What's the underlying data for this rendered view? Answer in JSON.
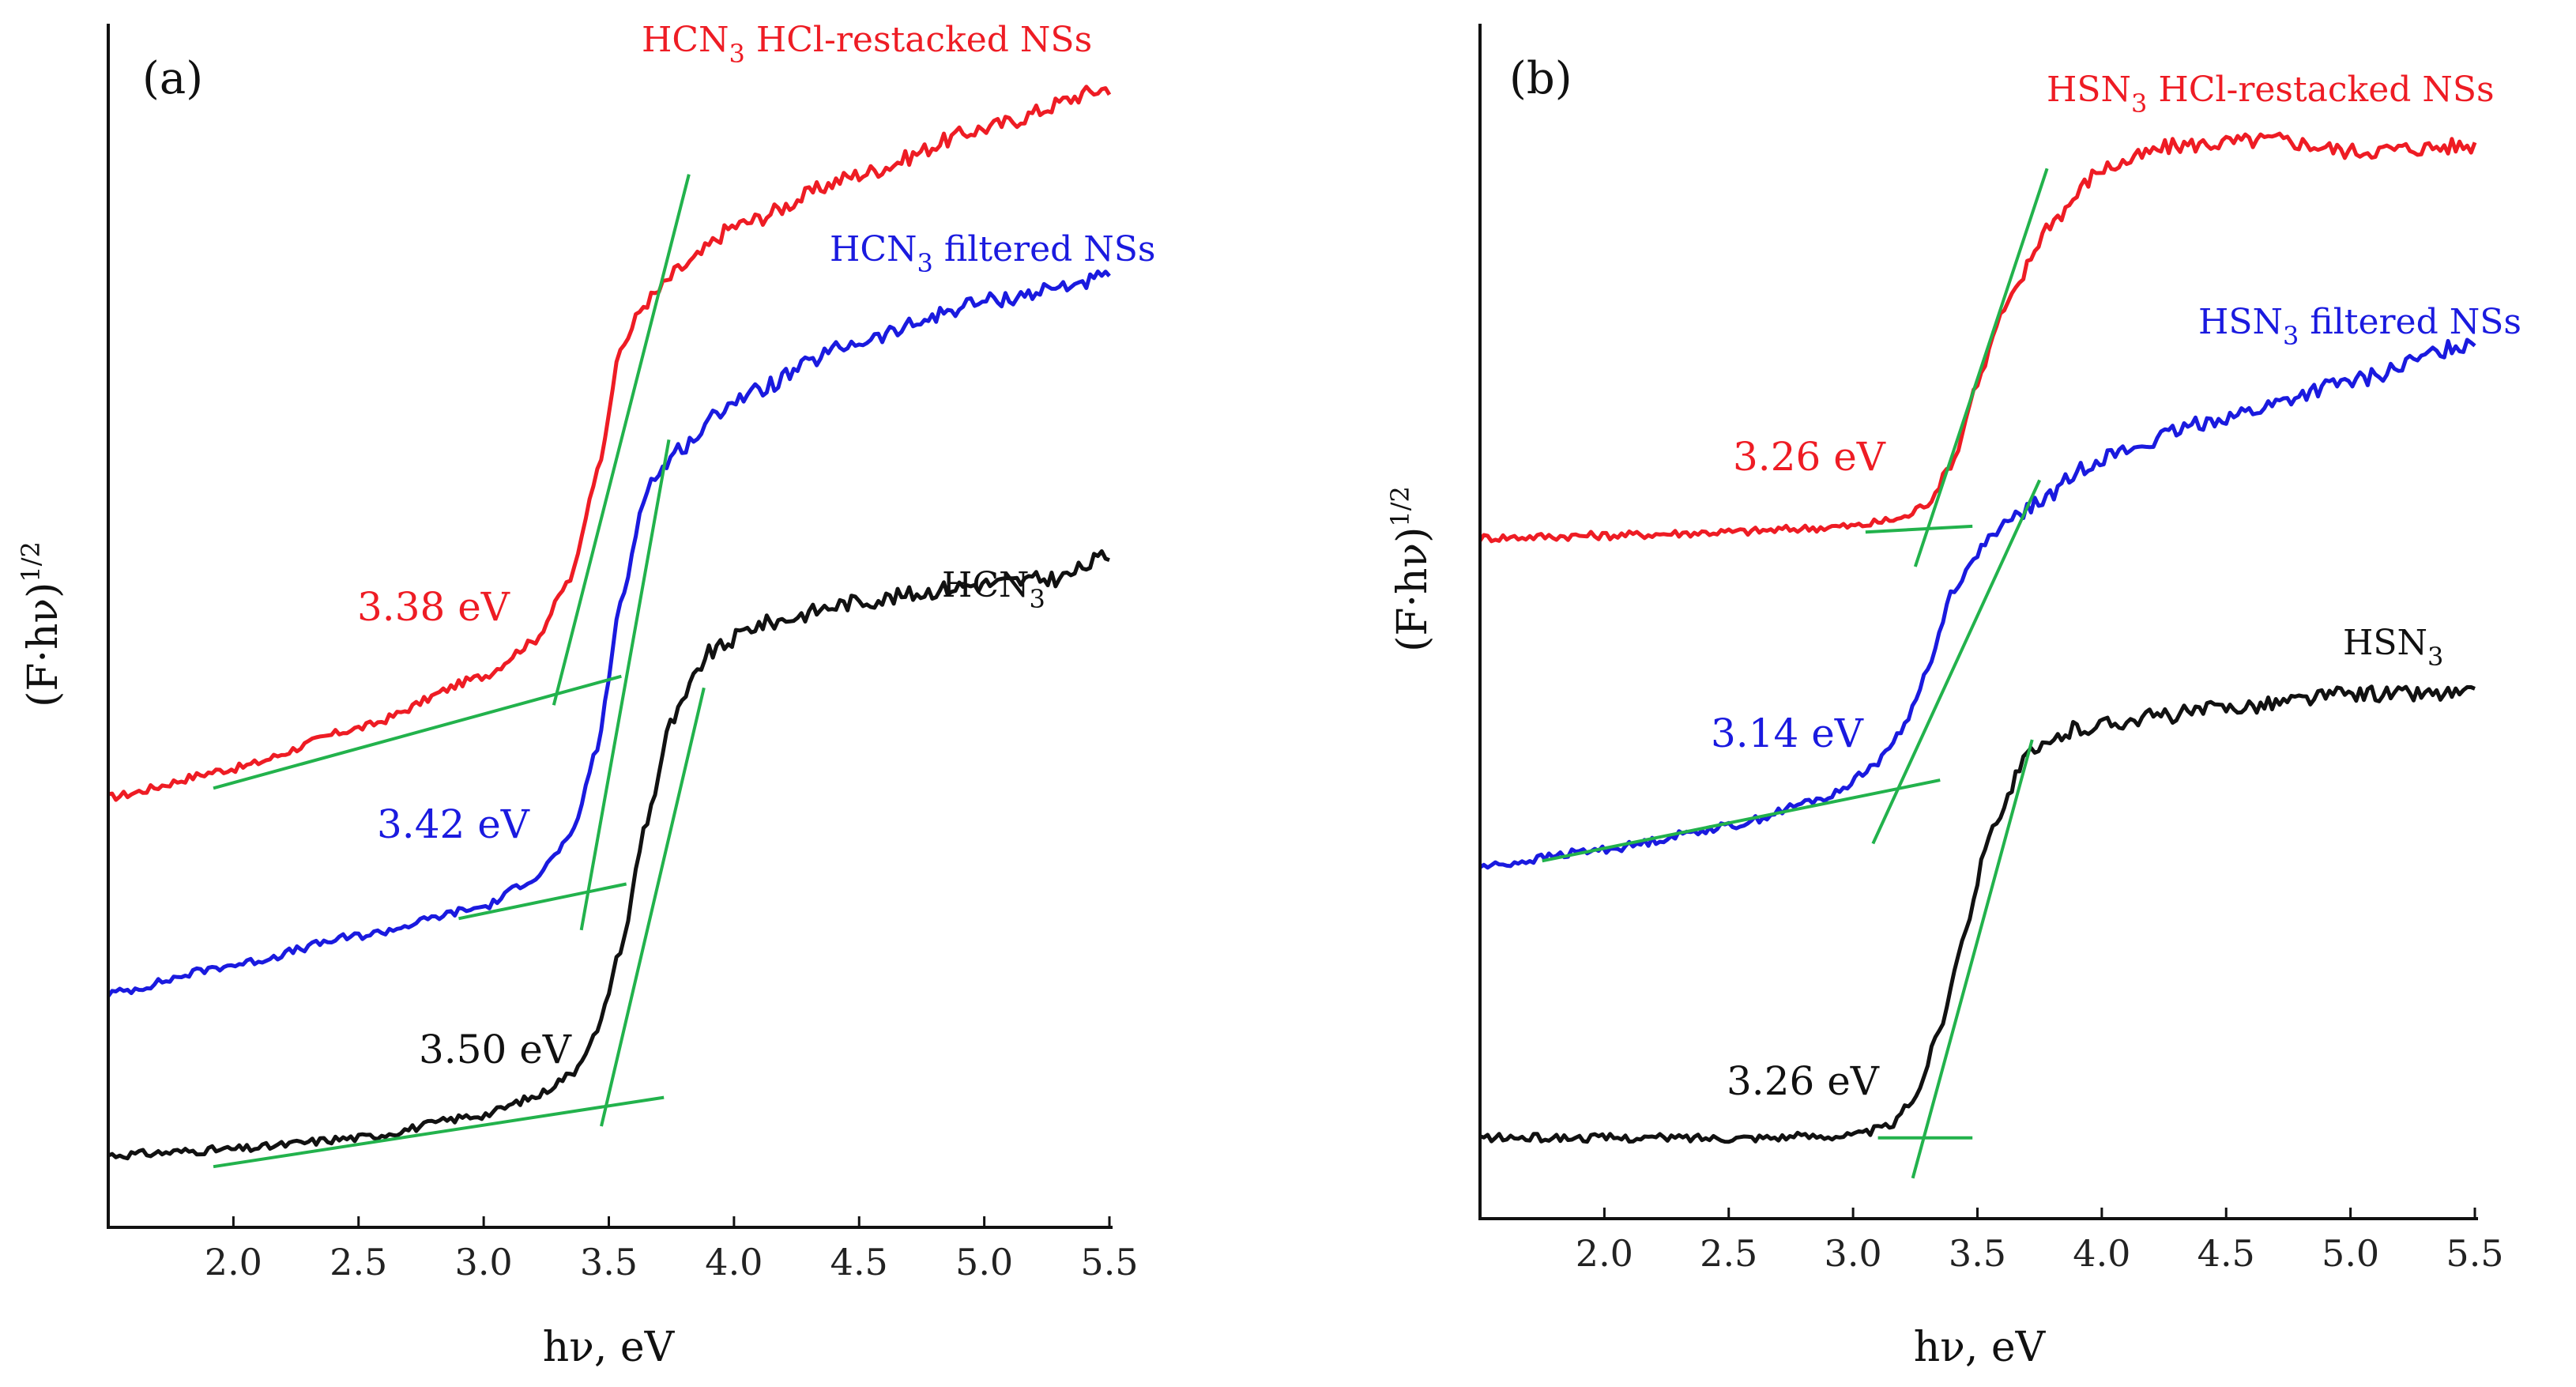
{
  "colors": {
    "red": "#ee1c24",
    "blue": "#1a1adf",
    "black": "#111111",
    "green": "#22b24c"
  },
  "chart_data": [
    {
      "type": "line",
      "panel_label": "(a)",
      "xlabel": "hν, eV",
      "ylabel_main": "(F·hν)",
      "ylabel_exp": "1/2",
      "xlim": [
        1.5,
        5.5
      ],
      "ylim": [
        0,
        10
      ],
      "xticks": [
        "2.0",
        "2.5",
        "3.0",
        "3.5",
        "4.0",
        "4.5",
        "5.0",
        "5.5"
      ],
      "series": [
        {
          "name": "HCN3 HCl-restacked NSs",
          "label_main": "HCN",
          "label_sub": "3",
          "label_rest": " HCl-restacked NSs",
          "color": "red",
          "bandgap": "3.38 eV",
          "x": [
            1.5,
            2.0,
            2.5,
            3.0,
            3.2,
            3.35,
            3.45,
            3.55,
            3.65,
            3.8,
            4.0,
            4.5,
            5.0,
            5.5
          ],
          "y": [
            3.5,
            3.75,
            4.1,
            4.55,
            4.85,
            5.4,
            6.3,
            7.4,
            7.8,
            8.1,
            8.45,
            8.9,
            9.3,
            9.65
          ]
        },
        {
          "name": "HCN3 filtered NSs",
          "label_main": "HCN",
          "label_sub": "3",
          "label_rest": " filtered NSs",
          "color": "blue",
          "bandgap": "3.42 eV",
          "x": [
            1.5,
            2.0,
            2.5,
            3.0,
            3.2,
            3.35,
            3.45,
            3.55,
            3.65,
            3.8,
            4.0,
            4.5,
            5.0,
            5.5
          ],
          "y": [
            1.8,
            2.05,
            2.3,
            2.55,
            2.8,
            3.15,
            3.9,
            5.2,
            6.2,
            6.55,
            6.95,
            7.45,
            7.8,
            8.0
          ]
        },
        {
          "name": "HCN3",
          "label_main": "HCN",
          "label_sub": "3",
          "label_rest": "",
          "color": "black",
          "bandgap": "3.50 eV",
          "x": [
            1.5,
            2.0,
            2.5,
            3.0,
            3.2,
            3.35,
            3.45,
            3.55,
            3.65,
            3.75,
            3.9,
            4.1,
            4.5,
            5.0,
            5.3,
            5.5
          ],
          "y": [
            0.4,
            0.45,
            0.55,
            0.75,
            0.9,
            1.1,
            1.45,
            2.2,
            3.3,
            4.15,
            4.75,
            5.0,
            5.2,
            5.35,
            5.4,
            5.6
          ]
        }
      ],
      "tangents": [
        {
          "color": "green",
          "x": [
            1.92,
            3.55
          ],
          "y": [
            3.58,
            4.55
          ]
        },
        {
          "color": "green",
          "x": [
            3.28,
            3.82
          ],
          "y": [
            4.3,
            8.9
          ]
        },
        {
          "color": "green",
          "x": [
            2.9,
            3.57
          ],
          "y": [
            2.45,
            2.75
          ]
        },
        {
          "color": "green",
          "x": [
            3.39,
            3.74
          ],
          "y": [
            2.35,
            6.6
          ]
        },
        {
          "color": "green",
          "x": [
            1.92,
            3.72
          ],
          "y": [
            0.3,
            0.9
          ]
        },
        {
          "color": "green",
          "x": [
            3.47,
            3.88
          ],
          "y": [
            0.65,
            4.45
          ]
        }
      ]
    },
    {
      "type": "line",
      "panel_label": "(b)",
      "xlabel": "hν, eV",
      "ylabel_main": "(F·hν)",
      "ylabel_exp": "1/2",
      "xlim": [
        1.5,
        5.5
      ],
      "ylim": [
        0,
        10
      ],
      "xticks": [
        "2.0",
        "2.5",
        "3.0",
        "3.5",
        "4.0",
        "4.5",
        "5.0",
        "5.5"
      ],
      "series": [
        {
          "name": "HSN3 HCl-restacked NSs",
          "label_main": "HSN",
          "label_sub": "3",
          "label_rest": " HCl-restacked NSs",
          "color": "red",
          "bandgap": "3.26 eV",
          "x": [
            1.5,
            2.0,
            2.5,
            3.0,
            3.2,
            3.3,
            3.4,
            3.5,
            3.6,
            3.8,
            4.0,
            4.3,
            4.7,
            5.0,
            5.5
          ],
          "y": [
            5.75,
            5.77,
            5.8,
            5.85,
            5.92,
            6.05,
            6.4,
            7.1,
            7.7,
            8.5,
            8.95,
            9.15,
            9.2,
            9.1,
            9.15
          ]
        },
        {
          "name": "HSN3 filtered NSs",
          "label_main": "HSN",
          "label_sub": "3",
          "label_rest": " filtered NSs",
          "color": "blue",
          "bandgap": "3.14 eV",
          "x": [
            1.5,
            2.0,
            2.5,
            2.9,
            3.1,
            3.2,
            3.3,
            3.4,
            3.55,
            3.7,
            4.0,
            4.5,
            5.0,
            5.5
          ],
          "y": [
            2.9,
            3.05,
            3.25,
            3.5,
            3.8,
            4.1,
            4.6,
            5.3,
            5.75,
            6.0,
            6.45,
            6.8,
            7.1,
            7.45
          ]
        },
        {
          "name": "HSN3",
          "label_main": "HSN",
          "label_sub": "3",
          "label_rest": "",
          "color": "black",
          "bandgap": "3.26 eV",
          "x": [
            1.5,
            2.0,
            2.5,
            3.0,
            3.15,
            3.25,
            3.35,
            3.45,
            3.55,
            3.7,
            3.9,
            4.2,
            4.6,
            5.0,
            5.5
          ],
          "y": [
            0.55,
            0.55,
            0.55,
            0.57,
            0.65,
            0.9,
            1.5,
            2.35,
            3.2,
            3.85,
            4.1,
            4.2,
            4.3,
            4.4,
            4.4
          ]
        }
      ],
      "tangents": [
        {
          "color": "green",
          "x": [
            3.05,
            3.48
          ],
          "y": [
            5.8,
            5.85
          ]
        },
        {
          "color": "green",
          "x": [
            3.25,
            3.78
          ],
          "y": [
            5.5,
            8.95
          ]
        },
        {
          "color": "green",
          "x": [
            1.75,
            3.35
          ],
          "y": [
            2.95,
            3.65
          ]
        },
        {
          "color": "green",
          "x": [
            3.08,
            3.75
          ],
          "y": [
            3.1,
            6.25
          ]
        },
        {
          "color": "green",
          "x": [
            3.1,
            3.48
          ],
          "y": [
            0.55,
            0.55
          ]
        },
        {
          "color": "green",
          "x": [
            3.24,
            3.72
          ],
          "y": [
            0.2,
            4.0
          ]
        }
      ]
    }
  ]
}
